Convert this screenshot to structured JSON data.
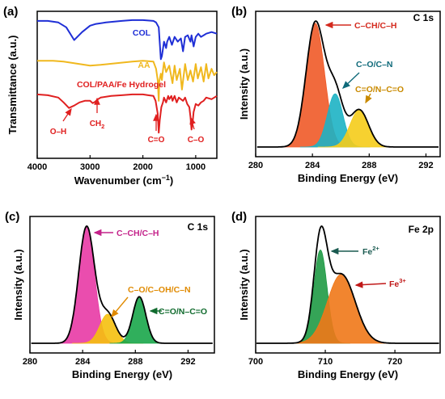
{
  "chart_data": [
    {
      "panel": "(a)",
      "type": "line",
      "xlabel_main": "Wavenumber (cm",
      "xlabel_sup": "−1",
      "xlabel_tail": ")",
      "ylabel": "Transmittance (a.u.)",
      "xlim": [
        4000,
        600
      ],
      "xticks": [
        4000,
        3000,
        2000,
        1000
      ],
      "series": [
        {
          "name": "COL",
          "color": "#1f2fd6",
          "x": [
            4000,
            3800,
            3600,
            3450,
            3300,
            3150,
            3000,
            2900,
            2700,
            2400,
            2200,
            2000,
            1800,
            1750,
            1700,
            1660,
            1640,
            1600,
            1560,
            1540,
            1500,
            1450,
            1400,
            1340,
            1280,
            1240,
            1200,
            1150,
            1100,
            1080,
            1040,
            1000,
            950,
            900,
            800,
            700,
            600
          ],
          "y": [
            8.6,
            8.6,
            8.5,
            8.2,
            7.4,
            7.9,
            8.3,
            8.4,
            8.5,
            8.6,
            8.65,
            8.65,
            8.6,
            8.5,
            8.2,
            6.2,
            6.4,
            7.3,
            6.9,
            7.3,
            7.6,
            7.1,
            7.6,
            7.3,
            7.5,
            6.7,
            7.6,
            7.7,
            7.3,
            7.7,
            7.0,
            7.6,
            7.8,
            7.6,
            7.8,
            7.9,
            7.8
          ]
        },
        {
          "name": "AA",
          "color": "#f0b81e",
          "x": [
            4000,
            3700,
            3500,
            3200,
            3000,
            2800,
            2500,
            2200,
            2000,
            1800,
            1750,
            1720,
            1700,
            1690,
            1660,
            1640,
            1620,
            1600,
            1560,
            1500,
            1440,
            1400,
            1360,
            1300,
            1260,
            1200,
            1150,
            1100,
            1050,
            1000,
            960,
            900,
            850,
            800,
            760,
            700,
            650,
            600
          ],
          "y": [
            6.1,
            6.1,
            6.05,
            5.9,
            5.8,
            5.85,
            5.95,
            6.05,
            6.1,
            6.05,
            5.6,
            4.9,
            3.6,
            4.8,
            5.3,
            4.9,
            5.5,
            6.0,
            5.4,
            5.8,
            4.7,
            5.8,
            4.9,
            5.6,
            4.3,
            5.9,
            4.9,
            5.5,
            4.8,
            5.9,
            5.0,
            5.7,
            4.8,
            5.9,
            5.0,
            5.6,
            5.2,
            5.4
          ]
        },
        {
          "name": "COL/PAA/Fe Hydrogel",
          "color": "#e02020",
          "x": [
            4000,
            3800,
            3600,
            3500,
            3400,
            3300,
            3200,
            3100,
            3000,
            2950,
            2900,
            2850,
            2800,
            2600,
            2400,
            2200,
            2000,
            1900,
            1800,
            1760,
            1720,
            1700,
            1680,
            1650,
            1620,
            1600,
            1560,
            1520,
            1500,
            1460,
            1440,
            1400,
            1360,
            1320,
            1280,
            1240,
            1200,
            1160,
            1120,
            1100,
            1080,
            1060,
            1040,
            1000,
            950,
            900,
            850,
            800,
            700,
            600
          ],
          "y": [
            4.0,
            3.95,
            3.8,
            3.5,
            3.15,
            3.3,
            3.5,
            3.6,
            3.6,
            3.45,
            3.55,
            3.7,
            3.8,
            3.9,
            3.95,
            4.0,
            4.0,
            3.95,
            3.9,
            3.6,
            2.8,
            1.6,
            2.4,
            3.2,
            3.5,
            3.8,
            3.5,
            3.9,
            3.7,
            3.9,
            3.6,
            3.9,
            3.5,
            3.8,
            3.7,
            3.6,
            3.8,
            3.4,
            3.2,
            2.6,
            1.8,
            2.2,
            2.9,
            3.4,
            3.3,
            3.5,
            3.6,
            3.8,
            3.7,
            3.9
          ]
        }
      ],
      "annotations": [
        "O–H",
        "CH",
        "C=O",
        "C–O"
      ],
      "annotation_sub": "2"
    },
    {
      "panel": "(b)",
      "type": "area",
      "title": "C 1s",
      "xlabel": "Binding Energy (eV)",
      "ylabel": "Intensity (a.u.)",
      "xlim": [
        280,
        293
      ],
      "xticks": [
        280,
        284,
        288,
        292
      ],
      "peaks": [
        {
          "center": 284.2,
          "height": 1.0,
          "sigma": 0.65,
          "color": "#f05a28"
        },
        {
          "center": 285.6,
          "height": 0.43,
          "sigma": 0.55,
          "color": "#1db3c4"
        },
        {
          "center": 287.3,
          "height": 0.3,
          "sigma": 0.65,
          "color": "#f5cc1a"
        }
      ],
      "labels": [
        "C–CH/C–H",
        "C–O/C–N",
        "C=O/N–C=O"
      ],
      "label_colors": [
        "#d42a1e",
        "#0f6a7a",
        "#c98a00"
      ]
    },
    {
      "panel": "(c)",
      "type": "area",
      "title": "C 1s",
      "xlabel": "Binding Energy (eV)",
      "ylabel": "Intensity (a.u.)",
      "xlim": [
        280,
        294
      ],
      "xticks": [
        280,
        284,
        288,
        292
      ],
      "peaks": [
        {
          "center": 284.3,
          "height": 1.0,
          "sigma": 0.6,
          "color": "#e83aa5"
        },
        {
          "center": 285.9,
          "height": 0.25,
          "sigma": 0.6,
          "color": "#f5c00e"
        },
        {
          "center": 288.3,
          "height": 0.4,
          "sigma": 0.5,
          "color": "#1aa64a"
        }
      ],
      "labels": [
        "C–CH/C–H",
        "C–O/C–OH/C–N",
        "C=O/N–C=O"
      ],
      "label_colors": [
        "#c4238a",
        "#e08a00",
        "#116b2e"
      ]
    },
    {
      "panel": "(d)",
      "type": "area",
      "title": "Fe 2p",
      "xlabel": "Binding Energy (eV)",
      "ylabel": "Intensity (a.u.)",
      "xlim": [
        700,
        726.5
      ],
      "xticks": [
        700,
        710,
        720
      ],
      "peaks": [
        {
          "center": 709.3,
          "height": 0.92,
          "sigma": 0.95,
          "color": "#1f9a45"
        },
        {
          "center": 712.3,
          "height": 0.68,
          "sigma": 2.0,
          "color": "#f07818"
        }
      ],
      "labels": [
        "Fe",
        "Fe"
      ],
      "label_sups": [
        "2+",
        "3+"
      ],
      "label_colors": [
        "#1a5a50",
        "#c01818"
      ]
    }
  ]
}
